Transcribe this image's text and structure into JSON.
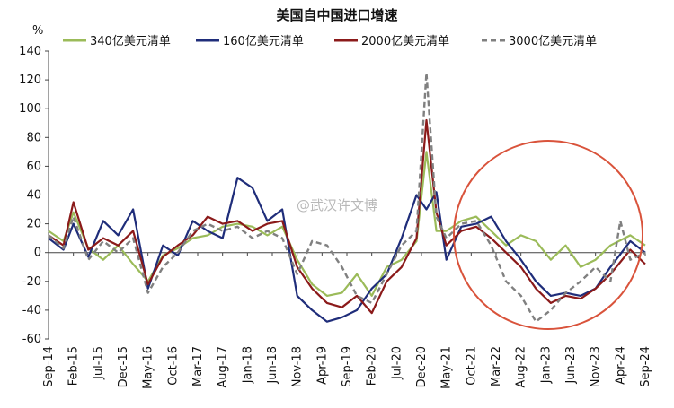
{
  "watermark": "@武汉许文博",
  "chart_data": {
    "type": "line",
    "title": "美国自中国进口增速",
    "ylabel": "%",
    "ylim": [
      -60,
      140
    ],
    "yticks": [
      -60,
      -40,
      -20,
      0,
      20,
      40,
      60,
      80,
      100,
      120,
      140
    ],
    "x_start": "2014-09",
    "x_end": "2024-09",
    "xtick_labels": [
      "Sep-14",
      "Feb-15",
      "Jul-15",
      "Dec-15",
      "May-16",
      "Oct-16",
      "Mar-17",
      "Aug-17",
      "Jan-18",
      "Jun-18",
      "Nov-18",
      "Apr-19",
      "Sep-19",
      "Feb-20",
      "Jul-20",
      "Dec-20",
      "May-21",
      "Oct-21",
      "Mar-22",
      "Aug-22",
      "Jan-23",
      "Jun-23",
      "Nov-23",
      "Apr-24",
      "Sep-24"
    ],
    "legend_position": "top",
    "grid": false,
    "highlight": {
      "shape": "circle",
      "color": "#d9533b"
    },
    "series": [
      {
        "name": "340亿美元清单",
        "color": "#9bbb59",
        "dash": false,
        "points": [
          [
            "2014-09",
            15
          ],
          [
            "2014-12",
            8
          ],
          [
            "2015-02",
            28
          ],
          [
            "2015-05",
            3
          ],
          [
            "2015-08",
            -5
          ],
          [
            "2015-11",
            5
          ],
          [
            "2016-02",
            -8
          ],
          [
            "2016-05",
            -20
          ],
          [
            "2016-08",
            -2
          ],
          [
            "2016-11",
            3
          ],
          [
            "2017-02",
            10
          ],
          [
            "2017-05",
            12
          ],
          [
            "2017-08",
            18
          ],
          [
            "2017-11",
            20
          ],
          [
            "2018-02",
            18
          ],
          [
            "2018-05",
            12
          ],
          [
            "2018-08",
            18
          ],
          [
            "2018-11",
            -5
          ],
          [
            "2019-02",
            -22
          ],
          [
            "2019-05",
            -30
          ],
          [
            "2019-08",
            -28
          ],
          [
            "2019-11",
            -15
          ],
          [
            "2020-02",
            -30
          ],
          [
            "2020-05",
            -10
          ],
          [
            "2020-08",
            -5
          ],
          [
            "2020-11",
            8
          ],
          [
            "2021-01",
            70
          ],
          [
            "2021-03",
            15
          ],
          [
            "2021-05",
            15
          ],
          [
            "2021-08",
            22
          ],
          [
            "2021-11",
            25
          ],
          [
            "2022-02",
            15
          ],
          [
            "2022-05",
            5
          ],
          [
            "2022-08",
            12
          ],
          [
            "2022-11",
            8
          ],
          [
            "2023-02",
            -5
          ],
          [
            "2023-05",
            5
          ],
          [
            "2023-08",
            -10
          ],
          [
            "2023-11",
            -5
          ],
          [
            "2024-02",
            5
          ],
          [
            "2024-06",
            12
          ],
          [
            "2024-09",
            5
          ]
        ]
      },
      {
        "name": "160亿美元清单",
        "color": "#1f2d7a",
        "dash": false,
        "points": [
          [
            "2014-09",
            10
          ],
          [
            "2014-12",
            2
          ],
          [
            "2015-02",
            20
          ],
          [
            "2015-05",
            -3
          ],
          [
            "2015-08",
            22
          ],
          [
            "2015-11",
            12
          ],
          [
            "2016-02",
            30
          ],
          [
            "2016-05",
            -25
          ],
          [
            "2016-08",
            5
          ],
          [
            "2016-11",
            -2
          ],
          [
            "2017-02",
            22
          ],
          [
            "2017-05",
            15
          ],
          [
            "2017-08",
            10
          ],
          [
            "2017-11",
            52
          ],
          [
            "2018-02",
            45
          ],
          [
            "2018-05",
            22
          ],
          [
            "2018-08",
            30
          ],
          [
            "2018-11",
            -30
          ],
          [
            "2019-02",
            -40
          ],
          [
            "2019-05",
            -48
          ],
          [
            "2019-08",
            -45
          ],
          [
            "2019-11",
            -40
          ],
          [
            "2020-02",
            -25
          ],
          [
            "2020-05",
            -15
          ],
          [
            "2020-08",
            10
          ],
          [
            "2020-11",
            40
          ],
          [
            "2021-01",
            30
          ],
          [
            "2021-03",
            42
          ],
          [
            "2021-05",
            -5
          ],
          [
            "2021-08",
            18
          ],
          [
            "2021-11",
            20
          ],
          [
            "2022-02",
            25
          ],
          [
            "2022-05",
            8
          ],
          [
            "2022-08",
            -5
          ],
          [
            "2022-11",
            -20
          ],
          [
            "2023-02",
            -30
          ],
          [
            "2023-05",
            -28
          ],
          [
            "2023-08",
            -30
          ],
          [
            "2023-11",
            -25
          ],
          [
            "2024-02",
            -10
          ],
          [
            "2024-06",
            8
          ],
          [
            "2024-09",
            0
          ]
        ]
      },
      {
        "name": "2000亿美元清单",
        "color": "#8b1a1a",
        "dash": false,
        "points": [
          [
            "2014-09",
            12
          ],
          [
            "2014-12",
            5
          ],
          [
            "2015-02",
            35
          ],
          [
            "2015-05",
            2
          ],
          [
            "2015-08",
            10
          ],
          [
            "2015-11",
            5
          ],
          [
            "2016-02",
            15
          ],
          [
            "2016-05",
            -22
          ],
          [
            "2016-08",
            -3
          ],
          [
            "2016-11",
            5
          ],
          [
            "2017-02",
            12
          ],
          [
            "2017-05",
            25
          ],
          [
            "2017-08",
            20
          ],
          [
            "2017-11",
            22
          ],
          [
            "2018-02",
            15
          ],
          [
            "2018-05",
            20
          ],
          [
            "2018-08",
            22
          ],
          [
            "2018-11",
            -10
          ],
          [
            "2019-02",
            -25
          ],
          [
            "2019-05",
            -35
          ],
          [
            "2019-08",
            -38
          ],
          [
            "2019-11",
            -30
          ],
          [
            "2020-02",
            -42
          ],
          [
            "2020-05",
            -20
          ],
          [
            "2020-08",
            -10
          ],
          [
            "2020-11",
            10
          ],
          [
            "2021-01",
            92
          ],
          [
            "2021-03",
            28
          ],
          [
            "2021-05",
            5
          ],
          [
            "2021-08",
            15
          ],
          [
            "2021-11",
            18
          ],
          [
            "2022-02",
            10
          ],
          [
            "2022-05",
            0
          ],
          [
            "2022-08",
            -10
          ],
          [
            "2022-11",
            -25
          ],
          [
            "2023-02",
            -35
          ],
          [
            "2023-05",
            -30
          ],
          [
            "2023-08",
            -32
          ],
          [
            "2023-11",
            -25
          ],
          [
            "2024-02",
            -15
          ],
          [
            "2024-06",
            2
          ],
          [
            "2024-09",
            -8
          ]
        ]
      },
      {
        "name": "3000亿美元清单",
        "color": "#808080",
        "dash": true,
        "points": [
          [
            "2014-09",
            12
          ],
          [
            "2014-12",
            3
          ],
          [
            "2015-02",
            25
          ],
          [
            "2015-05",
            -5
          ],
          [
            "2015-08",
            8
          ],
          [
            "2015-11",
            0
          ],
          [
            "2016-02",
            10
          ],
          [
            "2016-05",
            -28
          ],
          [
            "2016-08",
            -10
          ],
          [
            "2016-11",
            0
          ],
          [
            "2017-02",
            15
          ],
          [
            "2017-05",
            20
          ],
          [
            "2017-08",
            15
          ],
          [
            "2017-11",
            18
          ],
          [
            "2018-02",
            10
          ],
          [
            "2018-05",
            15
          ],
          [
            "2018-08",
            10
          ],
          [
            "2018-11",
            -15
          ],
          [
            "2019-02",
            8
          ],
          [
            "2019-05",
            5
          ],
          [
            "2019-08",
            -10
          ],
          [
            "2019-11",
            -30
          ],
          [
            "2020-02",
            -35
          ],
          [
            "2020-05",
            -15
          ],
          [
            "2020-08",
            5
          ],
          [
            "2020-11",
            15
          ],
          [
            "2021-01",
            125
          ],
          [
            "2021-03",
            25
          ],
          [
            "2021-05",
            10
          ],
          [
            "2021-08",
            20
          ],
          [
            "2021-11",
            22
          ],
          [
            "2022-02",
            5
          ],
          [
            "2022-05",
            -20
          ],
          [
            "2022-08",
            -30
          ],
          [
            "2022-11",
            -48
          ],
          [
            "2023-02",
            -40
          ],
          [
            "2023-05",
            -28
          ],
          [
            "2023-08",
            -20
          ],
          [
            "2023-11",
            -10
          ],
          [
            "2024-02",
            -20
          ],
          [
            "2024-04",
            22
          ],
          [
            "2024-06",
            -5
          ],
          [
            "2024-09",
            0
          ]
        ]
      }
    ]
  }
}
